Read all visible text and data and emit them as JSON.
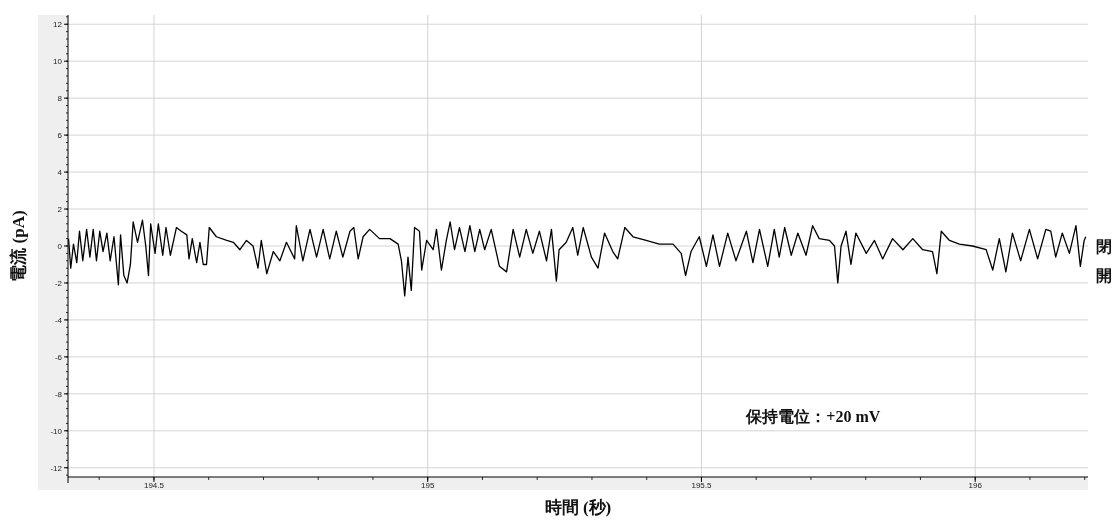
{
  "chart_data": {
    "type": "line",
    "xlabel": "時間 (秒)",
    "ylabel": "電流 (pA)",
    "xlim": [
      194.343,
      196.206
    ],
    "ylim": [
      -12.5,
      12.5
    ],
    "xticks": [
      194.5,
      195,
      195.5,
      196
    ],
    "yticks": [
      -12,
      -10,
      -8,
      -6,
      -4,
      -2,
      0,
      2,
      4,
      6,
      8,
      10,
      12
    ],
    "grid": true,
    "annotations": [
      "保持電位：+20 mV",
      "閉",
      "開"
    ],
    "x": [
      194.344,
      194.348,
      194.353,
      194.359,
      194.364,
      194.37,
      194.377,
      194.383,
      194.389,
      194.395,
      194.401,
      194.407,
      194.414,
      194.42,
      194.427,
      194.435,
      194.439,
      194.445,
      194.451,
      194.457,
      194.462,
      194.47,
      194.479,
      194.485,
      194.49,
      194.494,
      194.502,
      194.508,
      194.516,
      194.522,
      194.53,
      194.541,
      194.55,
      194.56,
      194.564,
      194.57,
      194.578,
      194.584,
      194.59,
      194.596,
      194.601,
      194.614,
      194.633,
      194.645,
      194.657,
      194.669,
      194.681,
      194.69,
      194.696,
      194.706,
      194.718,
      194.73,
      194.742,
      194.757,
      194.76,
      194.772,
      194.785,
      194.797,
      194.809,
      194.821,
      194.833,
      194.845,
      194.858,
      194.865,
      194.873,
      194.882,
      194.894,
      194.912,
      194.931,
      194.946,
      194.952,
      194.958,
      194.964,
      194.97,
      194.976,
      194.985,
      194.989,
      194.998,
      195.01,
      195.016,
      195.025,
      195.034,
      195.041,
      195.049,
      195.058,
      195.068,
      195.077,
      195.086,
      195.095,
      195.104,
      195.116,
      195.131,
      195.144,
      195.156,
      195.168,
      195.18,
      195.192,
      195.204,
      195.217,
      195.226,
      195.235,
      195.24,
      195.253,
      195.265,
      195.274,
      195.284,
      195.299,
      195.311,
      195.323,
      195.338,
      195.347,
      195.36,
      195.375,
      195.399,
      195.423,
      195.448,
      195.463,
      195.471,
      195.481,
      195.496,
      195.509,
      195.521,
      195.533,
      195.548,
      195.563,
      195.582,
      195.594,
      195.606,
      195.621,
      195.633,
      195.642,
      195.652,
      195.664,
      195.676,
      195.691,
      195.703,
      195.715,
      195.734,
      195.743,
      195.749,
      195.755,
      195.764,
      195.773,
      195.782,
      195.801,
      195.816,
      195.831,
      195.849,
      195.868,
      195.886,
      195.904,
      195.922,
      195.93,
      195.938,
      195.953,
      195.971,
      195.995,
      196.02,
      196.032,
      196.044,
      196.056,
      196.068,
      196.083,
      196.099,
      196.114,
      196.129,
      196.138,
      196.147,
      196.159,
      196.172,
      196.184,
      196.192,
      196.199,
      196.202
    ],
    "series": [
      {
        "color": "#000000",
        "values": [
          0.4,
          -1.2,
          0.1,
          -0.9,
          0.8,
          -0.8,
          0.9,
          -0.6,
          0.9,
          -0.8,
          0.8,
          -0.3,
          0.7,
          -0.8,
          0.5,
          -2.1,
          0.6,
          -1.6,
          -2.0,
          -1.0,
          1.3,
          0.2,
          1.4,
          0.0,
          -1.6,
          1.2,
          -0.4,
          1.2,
          -0.5,
          1.0,
          -0.5,
          1.0,
          0.8,
          0.6,
          -0.7,
          0.4,
          -0.9,
          0.2,
          -1.0,
          -1.0,
          1.0,
          0.5,
          0.3,
          0.2,
          -0.2,
          0.3,
          0.0,
          -1.2,
          0.3,
          -1.5,
          -0.3,
          -0.8,
          0.2,
          -0.7,
          1.1,
          -0.8,
          0.9,
          -0.6,
          0.9,
          -0.7,
          0.8,
          -0.6,
          0.8,
          1.0,
          -0.7,
          0.5,
          0.9,
          0.4,
          0.4,
          0.1,
          -0.8,
          -2.7,
          -0.6,
          -2.4,
          1.0,
          0.8,
          -1.3,
          0.3,
          -0.2,
          0.9,
          -1.3,
          0.3,
          1.3,
          -0.2,
          1.0,
          -0.3,
          1.1,
          -0.3,
          0.9,
          -0.2,
          0.9,
          -1.1,
          -1.4,
          0.9,
          -0.6,
          0.9,
          -0.4,
          0.8,
          -0.8,
          0.9,
          -1.9,
          -0.2,
          0.2,
          1.0,
          -0.5,
          1.0,
          -0.6,
          -1.2,
          0.7,
          -0.3,
          -0.7,
          1.0,
          0.5,
          0.3,
          0.1,
          0.1,
          -0.4,
          -1.6,
          -0.3,
          0.5,
          -1.1,
          0.6,
          -1.1,
          0.7,
          -0.8,
          0.8,
          -0.9,
          0.9,
          -1.1,
          0.9,
          -0.6,
          1.0,
          -0.5,
          0.7,
          -0.5,
          1.1,
          0.4,
          0.3,
          0.0,
          -2.0,
          0.0,
          0.8,
          -1.0,
          0.7,
          -0.4,
          0.3,
          -0.7,
          0.4,
          -0.2,
          0.4,
          -0.2,
          -0.3,
          -1.5,
          0.8,
          0.3,
          0.1,
          0.0,
          -0.2,
          -1.3,
          0.4,
          -1.4,
          0.7,
          -0.8,
          0.9,
          -0.7,
          0.9,
          0.8,
          -0.6,
          0.7,
          -0.4,
          1.1,
          -1.1,
          0.3,
          0.5
        ]
      }
    ]
  }
}
